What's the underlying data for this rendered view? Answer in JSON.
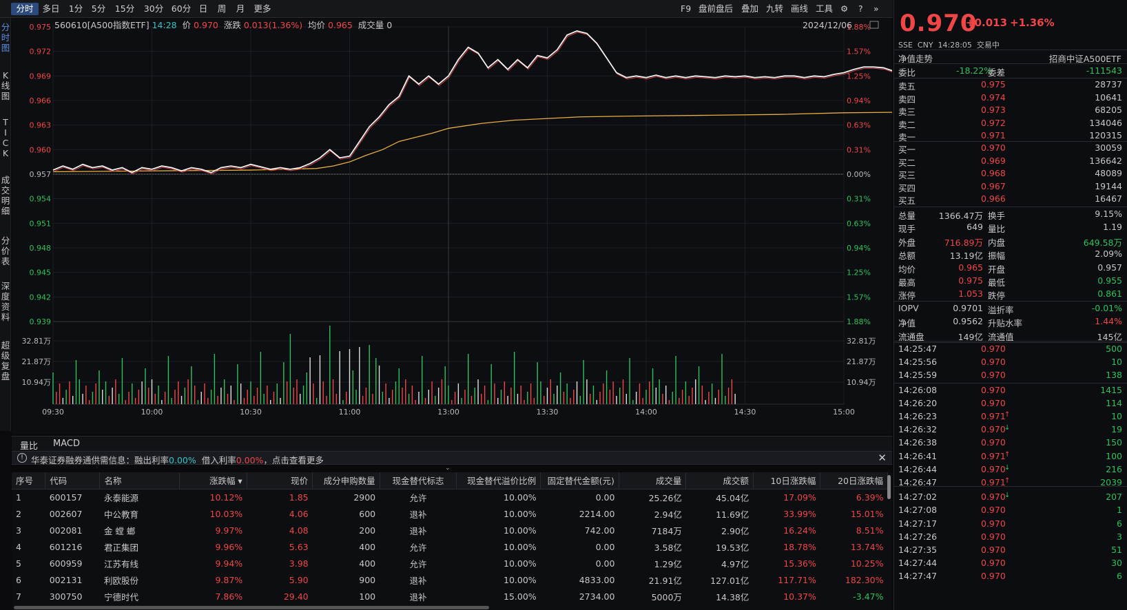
{
  "periods": [
    "分时",
    "多日",
    "1分",
    "5分",
    "15分",
    "30分",
    "60分",
    "日",
    "周",
    "月",
    "更多"
  ],
  "active_period": "分时",
  "toolbar_right": [
    "F9",
    "盘前盘后",
    "叠加",
    "九转",
    "画线",
    "工具"
  ],
  "side_tabs": [
    "分时图",
    "K线图",
    "TICK",
    "成交明细",
    "分价表",
    "深度资料",
    "超级复盘"
  ],
  "info": {
    "code": "560610[A500指数ETF]",
    "time": "14:28",
    "price_label": "价",
    "price": "0.970",
    "change_label": "涨跌",
    "change": "0.013(1.36%)",
    "avg_label": "均价",
    "avg": "0.965",
    "vol_label": "成交量",
    "vol": "0",
    "date": "2024/12/06"
  },
  "chart_data": {
    "type": "line",
    "y_left": [
      "0.975",
      "0.972",
      "0.969",
      "0.966",
      "0.963",
      "0.960",
      "0.957",
      "0.954",
      "0.951",
      "0.948",
      "0.945",
      "0.942",
      "0.939"
    ],
    "y_right": [
      "1.88%",
      "1.57%",
      "1.25%",
      "0.94%",
      "0.63%",
      "0.31%",
      "0.00%",
      "0.31%",
      "0.63%",
      "0.94%",
      "1.25%",
      "1.57%",
      "1.88%"
    ],
    "vol_labels": [
      "32.81万",
      "21.87万",
      "10.94万"
    ],
    "x_labels": [
      "09:30",
      "10:00",
      "10:30",
      "11:00",
      "13:00",
      "13:30",
      "14:00",
      "14:30",
      "15:00"
    ],
    "prev_close": 0.957,
    "ylim": [
      0.939,
      0.975
    ],
    "price_series": [
      [
        0,
        0.9575
      ],
      [
        3,
        0.958
      ],
      [
        6,
        0.9576
      ],
      [
        9,
        0.9582
      ],
      [
        12,
        0.9578
      ],
      [
        15,
        0.958
      ],
      [
        18,
        0.9575
      ],
      [
        21,
        0.9578
      ],
      [
        24,
        0.9572
      ],
      [
        27,
        0.9578
      ],
      [
        30,
        0.9576
      ],
      [
        33,
        0.958
      ],
      [
        36,
        0.9578
      ],
      [
        39,
        0.9574
      ],
      [
        42,
        0.9578
      ],
      [
        45,
        0.9576
      ],
      [
        48,
        0.9572
      ],
      [
        51,
        0.9578
      ],
      [
        54,
        0.958
      ],
      [
        57,
        0.9578
      ],
      [
        60,
        0.9582
      ],
      [
        63,
        0.9579
      ],
      [
        66,
        0.9576
      ],
      [
        69,
        0.9578
      ],
      [
        72,
        0.9576
      ],
      [
        75,
        0.9578
      ],
      [
        78,
        0.9583
      ],
      [
        81,
        0.959
      ],
      [
        84,
        0.96
      ],
      [
        87,
        0.959
      ],
      [
        90,
        0.9592
      ],
      [
        93,
        0.961
      ],
      [
        96,
        0.9628
      ],
      [
        99,
        0.964
      ],
      [
        102,
        0.9655
      ],
      [
        105,
        0.9665
      ],
      [
        108,
        0.969
      ],
      [
        111,
        0.968
      ],
      [
        114,
        0.969
      ],
      [
        117,
        0.968
      ],
      [
        120,
        0.969
      ],
      [
        123,
        0.971
      ],
      [
        126,
        0.9725
      ],
      [
        129,
        0.9718
      ],
      [
        132,
        0.97
      ],
      [
        135,
        0.971
      ],
      [
        138,
        0.9698
      ],
      [
        141,
        0.971
      ],
      [
        144,
        0.97
      ],
      [
        147,
        0.9715
      ],
      [
        150,
        0.9712
      ],
      [
        153,
        0.9722
      ],
      [
        156,
        0.974
      ],
      [
        159,
        0.9745
      ],
      [
        162,
        0.9742
      ],
      [
        165,
        0.973
      ],
      [
        168,
        0.9712
      ],
      [
        171,
        0.9694
      ],
      [
        174,
        0.9688
      ],
      [
        177,
        0.969
      ],
      [
        180,
        0.9688
      ],
      [
        183,
        0.9691
      ],
      [
        186,
        0.9688
      ],
      [
        189,
        0.969
      ],
      [
        192,
        0.9688
      ],
      [
        195,
        0.969
      ],
      [
        198,
        0.9689
      ],
      [
        201,
        0.9688
      ],
      [
        204,
        0.969
      ],
      [
        207,
        0.9689
      ],
      [
        210,
        0.969
      ],
      [
        213,
        0.9688
      ],
      [
        216,
        0.9689
      ],
      [
        219,
        0.9688
      ],
      [
        222,
        0.969
      ],
      [
        225,
        0.969
      ],
      [
        228,
        0.9688
      ],
      [
        231,
        0.969
      ],
      [
        234,
        0.9689
      ],
      [
        237,
        0.9692
      ],
      [
        240,
        0.9694
      ],
      [
        243,
        0.9698
      ],
      [
        246,
        0.9701
      ],
      [
        249,
        0.9701
      ],
      [
        252,
        0.97
      ],
      [
        255,
        0.9696
      ],
      [
        258,
        0.97
      ],
      [
        261,
        0.9703
      ],
      [
        264,
        0.97
      ]
    ],
    "avg_series": [
      [
        0,
        0.9573
      ],
      [
        30,
        0.9574
      ],
      [
        60,
        0.9575
      ],
      [
        80,
        0.9577
      ],
      [
        85,
        0.958
      ],
      [
        90,
        0.9585
      ],
      [
        95,
        0.9593
      ],
      [
        100,
        0.96
      ],
      [
        105,
        0.961
      ],
      [
        110,
        0.9615
      ],
      [
        115,
        0.962
      ],
      [
        120,
        0.9626
      ],
      [
        130,
        0.9632
      ],
      [
        140,
        0.9636
      ],
      [
        150,
        0.9638
      ],
      [
        160,
        0.964
      ],
      [
        175,
        0.9641
      ],
      [
        200,
        0.9642
      ],
      [
        220,
        0.9643
      ],
      [
        240,
        0.9645
      ],
      [
        264,
        0.9646
      ]
    ],
    "xlabel": "",
    "ylabel": ""
  },
  "sub_tabs": [
    "量比",
    "MACD"
  ],
  "notice": {
    "text1": "华泰证券融券通供需信息：融出利率",
    "rate1": "0.00%",
    "text2": "借入利率",
    "rate2": "0.00%",
    "text3": "，点击查看更多"
  },
  "table": {
    "headers": [
      "序号",
      "代码",
      "名称",
      "涨跌幅 ▾",
      "现价",
      "成分申购数量",
      "现金替代标志",
      "现金替代溢价比例",
      "固定替代金额(元)",
      "成交量",
      "成交额",
      "10日涨跌幅",
      "20日涨跌幅"
    ],
    "rows": [
      [
        "1",
        "600157",
        "永泰能源",
        "10.12%",
        "1.85",
        "2900",
        "允许",
        "10.00%",
        "0.00",
        "25.26亿",
        "45.04亿",
        "17.09%",
        "6.39%"
      ],
      [
        "2",
        "002607",
        "中公教育",
        "10.03%",
        "4.06",
        "600",
        "退补",
        "10.00%",
        "2214.00",
        "2.94亿",
        "11.69亿",
        "33.99%",
        "15.01%"
      ],
      [
        "3",
        "002081",
        "金 螳 螂",
        "9.97%",
        "4.08",
        "200",
        "退补",
        "10.00%",
        "742.00",
        "7184万",
        "2.90亿",
        "16.24%",
        "8.51%"
      ],
      [
        "4",
        "601216",
        "君正集团",
        "9.96%",
        "5.63",
        "400",
        "允许",
        "10.00%",
        "0.00",
        "3.58亿",
        "19.53亿",
        "18.78%",
        "13.74%"
      ],
      [
        "5",
        "600959",
        "江苏有线",
        "9.94%",
        "3.98",
        "400",
        "允许",
        "10.00%",
        "0.00",
        "1.29亿",
        "4.97亿",
        "15.36%",
        "10.25%"
      ],
      [
        "6",
        "002131",
        "利欧股份",
        "9.87%",
        "5.90",
        "900",
        "退补",
        "10.00%",
        "4833.00",
        "21.91亿",
        "127.01亿",
        "117.71%",
        "182.30%"
      ],
      [
        "7",
        "300750",
        "宁德时代",
        "7.86%",
        "29.40",
        "100",
        "退补",
        "15.00%",
        "2734.00",
        "5000万",
        "14.38亿",
        "10.37%",
        "-3.47%"
      ]
    ]
  },
  "quote": {
    "price": "0.970",
    "change": "+0.013",
    "pct": "+1.36%",
    "market": "SSE  CNY  14:28:05  交易中",
    "nav_label": "净值走势",
    "index_name": "招商中证A500ETF",
    "webi_label": "委比",
    "webi": "-18.22%",
    "weicha_label": "委差",
    "weicha": "-111543",
    "sells": [
      [
        "卖五",
        "0.975",
        "28737"
      ],
      [
        "卖四",
        "0.974",
        "10641"
      ],
      [
        "卖三",
        "0.973",
        "68205"
      ],
      [
        "卖二",
        "0.972",
        "134046"
      ],
      [
        "卖一",
        "0.971",
        "120315"
      ]
    ],
    "buys": [
      [
        "买一",
        "0.970",
        "30059"
      ],
      [
        "买二",
        "0.969",
        "136642"
      ],
      [
        "买三",
        "0.968",
        "48089"
      ],
      [
        "买四",
        "0.967",
        "19144"
      ],
      [
        "买五",
        "0.966",
        "16467"
      ]
    ],
    "stats": [
      [
        "总量",
        "1366.47万",
        "换手",
        "9.15%"
      ],
      [
        "现手",
        "649",
        "量比",
        "1.19"
      ],
      [
        "外盘",
        "716.89万",
        "内盘",
        "649.58万"
      ],
      [
        "总额",
        "13.19亿",
        "振幅",
        "2.09%"
      ],
      [
        "均价",
        "0.965",
        "开盘",
        "0.957"
      ],
      [
        "最高",
        "0.975",
        "最低",
        "0.955"
      ],
      [
        "涨停",
        "1.053",
        "跌停",
        "0.861"
      ]
    ],
    "stats2": [
      [
        "IOPV",
        "0.9701",
        "溢折率",
        "-0.01%"
      ],
      [
        "净值",
        "0.9562",
        "升贴水率",
        "1.44%"
      ],
      [
        "流通盘",
        "149亿",
        "流通值",
        "145亿"
      ]
    ],
    "ticks": [
      [
        "14:25:47",
        "0.970",
        "",
        "500"
      ],
      [
        "14:25:56",
        "0.970",
        "",
        "10"
      ],
      [
        "14:25:59",
        "0.970",
        "",
        "138"
      ],
      [
        "14:26:08",
        "0.970",
        "",
        "1415"
      ],
      [
        "14:26:20",
        "0.970",
        "",
        "114"
      ],
      [
        "14:26:23",
        "0.971",
        "↑",
        "10"
      ],
      [
        "14:26:32",
        "0.970",
        "↓",
        "19"
      ],
      [
        "14:26:38",
        "0.970",
        "",
        "150"
      ],
      [
        "14:26:41",
        "0.971",
        "↑",
        "100"
      ],
      [
        "14:26:44",
        "0.970",
        "↓",
        "216"
      ],
      [
        "14:26:47",
        "0.971",
        "↑",
        "2039"
      ],
      [
        "14:27:02",
        "0.970",
        "↓",
        "207"
      ],
      [
        "14:27:08",
        "0.970",
        "",
        "1"
      ],
      [
        "14:27:17",
        "0.970",
        "",
        "6"
      ],
      [
        "14:27:26",
        "0.970",
        "",
        "3"
      ],
      [
        "14:27:35",
        "0.970",
        "",
        "51"
      ],
      [
        "14:27:44",
        "0.970",
        "",
        "30"
      ],
      [
        "14:27:47",
        "0.970",
        "",
        "6"
      ]
    ]
  }
}
